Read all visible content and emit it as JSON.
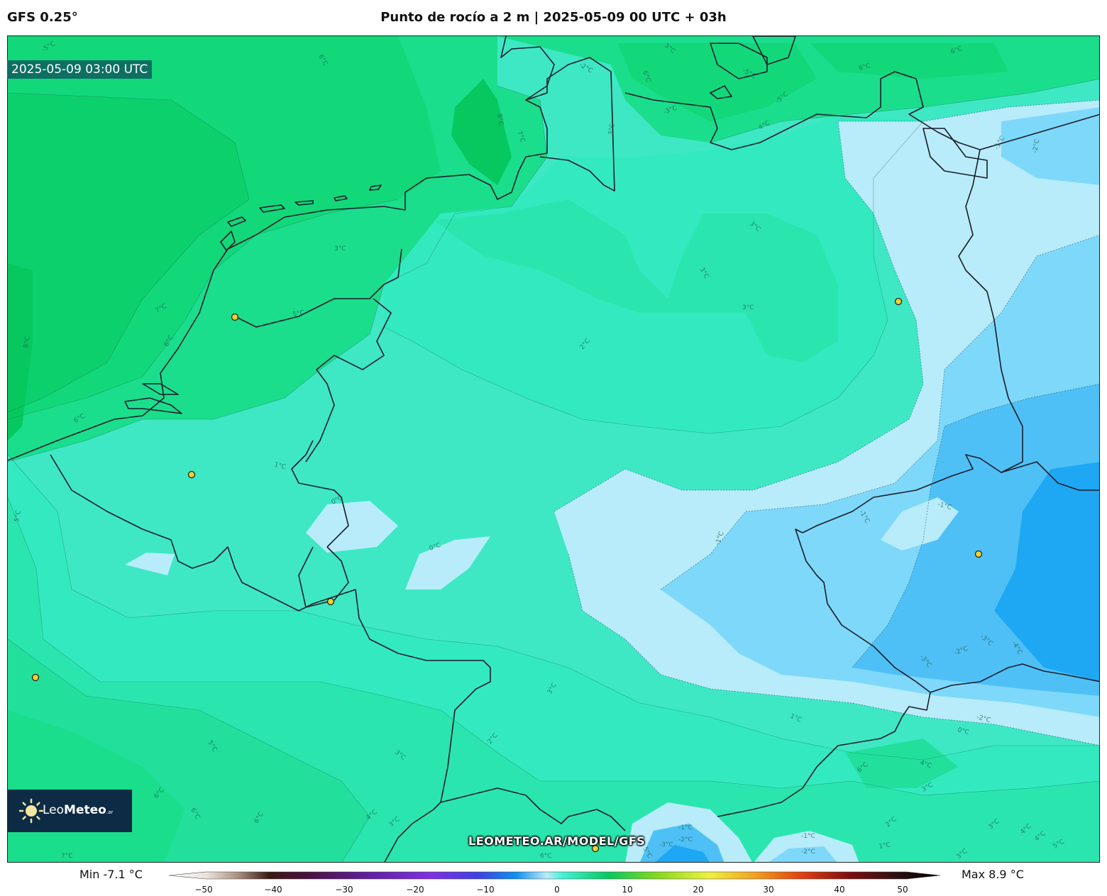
{
  "header": {
    "model": "GFS 0.25°",
    "title": "Punto de rocío a 2 m | 2025-05-09 00 UTC + 03h"
  },
  "map": {
    "valid_time": "2025-05-09 03:00 UTC",
    "watermark": "LEOMETEO.AR/MODEL/GFS",
    "logo": {
      "name": "Leo",
      "name_bold": "Meteo",
      "suffix": ".ar",
      "icon": "sun-icon"
    },
    "contour_labels": [
      "-5°C",
      "6°C",
      "-2°C",
      "6°C",
      "5°C",
      "-5°C",
      "6°C",
      "8°C",
      "7°C",
      "3°C",
      "-3°C",
      "4°C",
      "-5°C",
      "6°C",
      "-1°C",
      "-2°C",
      "3°C",
      "3°C",
      "3°C",
      "3°C",
      "2°C",
      "7°C",
      "6°C",
      "8°C",
      "5°C",
      "6°C",
      "1°C",
      "0°C",
      "0°C",
      "-1°C",
      "-1°C",
      "-1°C",
      "5°C",
      "3°C",
      "2°C",
      "3°C",
      "1°C",
      "0°C",
      "-2°C",
      "-3°C",
      "-4°C",
      "-2°C",
      "-3°C",
      "5°C",
      "6°C",
      "6°C",
      "4°C",
      "3°C",
      "3°C",
      "2°C",
      "1°C",
      "3°C",
      "4°C",
      "5°C",
      "-1°C",
      "-2°C",
      "-3°C",
      "-1°C",
      "-2°C",
      "6°C",
      "5°C",
      "6°C",
      "4°C",
      "7°C",
      "3°C",
      "4°C",
      "6°C"
    ],
    "city_markers": 7,
    "colors": {
      "band_8": "#06c85e",
      "band_7": "#0cd06c",
      "band_6": "#12d87a",
      "band_5": "#1ade8c",
      "band_4": "#22e09c",
      "band_3": "#2ae6ae",
      "band_2": "#33eac0",
      "band_1": "#3ee8c4",
      "band_0": "#47f0d6",
      "band_m1": "#b8ecfa",
      "band_m2": "#7ed8fa",
      "band_m3": "#4ec0f6",
      "band_m4": "#1ea8f4",
      "band_m5": "#0c8ef0",
      "marker": "#f0d230",
      "border": "#1c1c2a"
    }
  },
  "colorbar": {
    "min_label": "Min -7.1 °C",
    "max_label": "Max 8.9 °C",
    "ticks": [
      "−50",
      "−40",
      "−30",
      "−20",
      "−10",
      "0",
      "10",
      "20",
      "30",
      "40",
      "50"
    ]
  }
}
